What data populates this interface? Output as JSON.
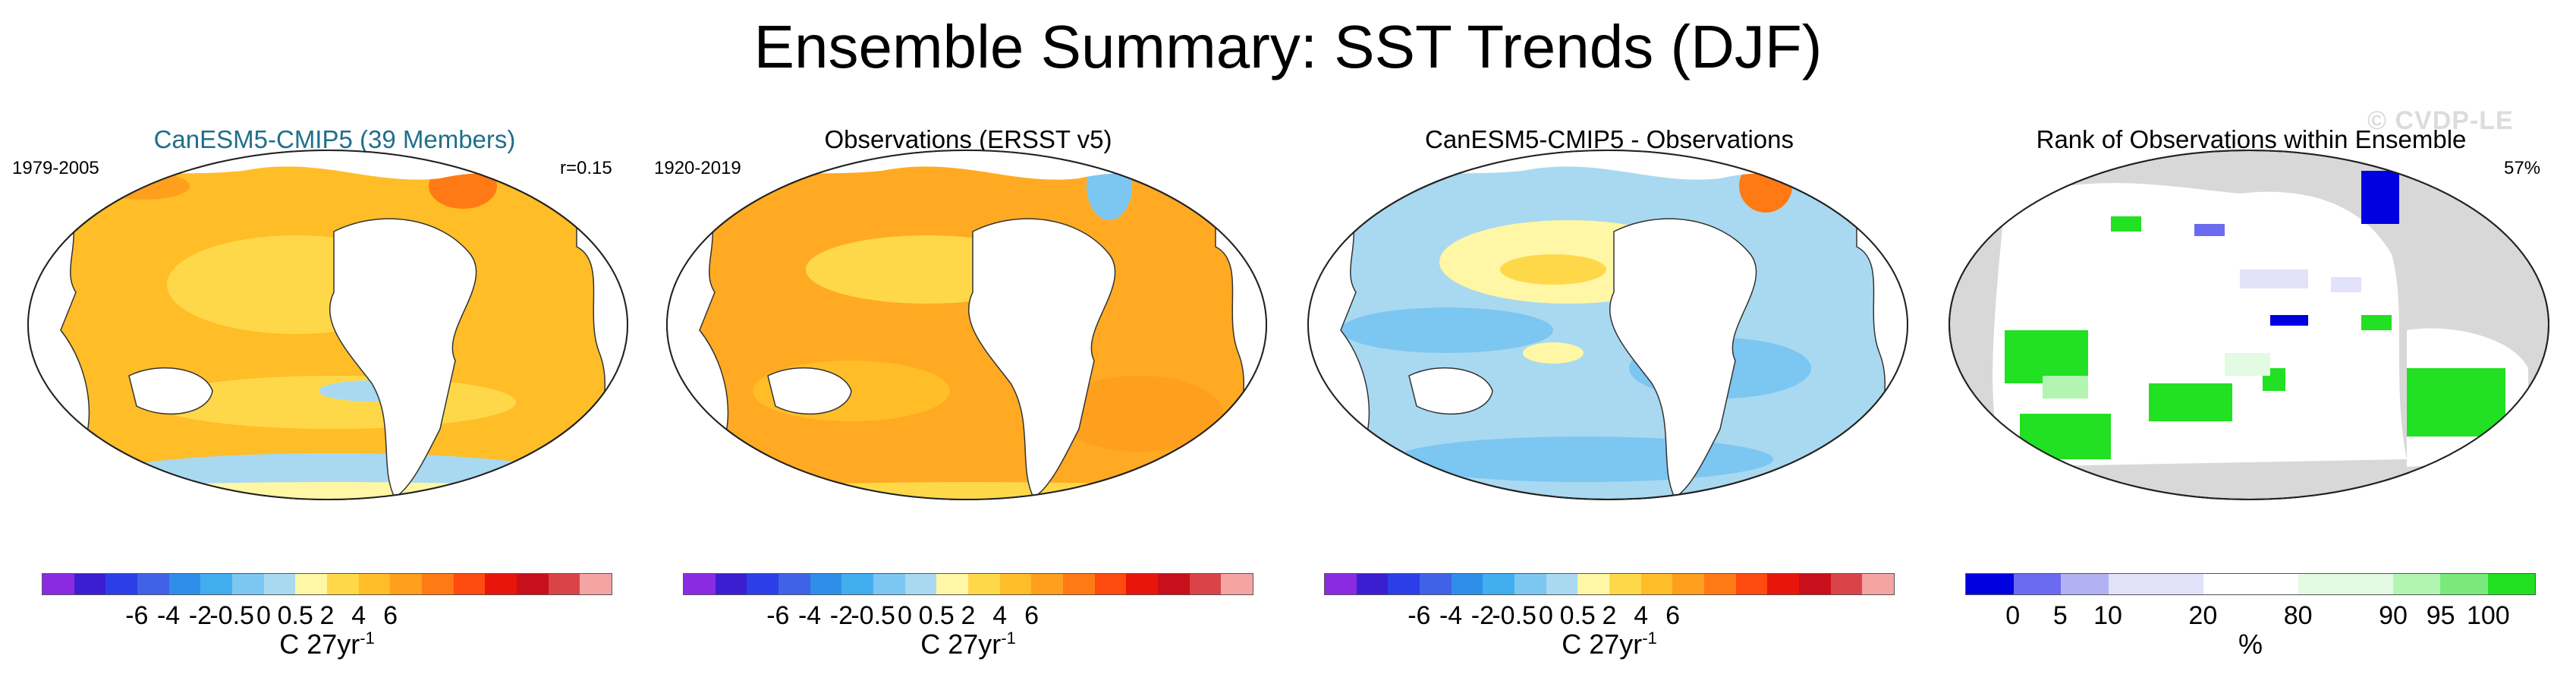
{
  "title": "Ensemble Summary: SST Trends (DJF)",
  "watermark": "© CVDP-LE",
  "panels": [
    {
      "title": "CanESM5-CMIP5 (39 Members)",
      "title_color": "#1f6f8b",
      "left_label": "1979-2005",
      "right_label": "r=0.15"
    },
    {
      "title": "Observations (ERSST v5)",
      "title_color": "#000000",
      "left_label": "1920-2019",
      "right_label": ""
    },
    {
      "title": "CanESM5-CMIP5 - Observations",
      "title_color": "#000000",
      "left_label": "",
      "right_label": ""
    },
    {
      "title": "Rank of Observations within Ensemble",
      "title_color": "#000000",
      "left_label": "",
      "right_label": "57%"
    }
  ],
  "trend_colorbar": {
    "colors": [
      "#8a2be2",
      "#3a1ed0",
      "#2b3ee8",
      "#3f62e6",
      "#2f8fe8",
      "#41aef0",
      "#7cc6f2",
      "#a9d9f0",
      "#fff7a5",
      "#ffd84a",
      "#ffbd28",
      "#ff9f1e",
      "#ff7a14",
      "#ff4a10",
      "#e8150a",
      "#c8101c",
      "#d94448",
      "#f5a4a4"
    ],
    "ticks": [
      "-6",
      "-4",
      "-2",
      "-0.5",
      "0",
      "0.5",
      "2",
      "4",
      "6"
    ],
    "units": "C 27yr",
    "units_exp": "-1"
  },
  "rank_colorbar": {
    "colors": [
      "#0000e0",
      "#6b6bf0",
      "#b2b2f2",
      "#e2e2fa",
      "#e2e2fa",
      "#ffffff",
      "#ffffff",
      "#e2fbe2",
      "#e2fbe2",
      "#b2f5b2",
      "#7ae87a",
      "#22e022"
    ],
    "ticks": [
      "0",
      "5",
      "10",
      "20",
      "80",
      "90",
      "95",
      "100"
    ],
    "units": "%"
  },
  "map_colors": {
    "ocean_model": "#ffbd28",
    "ocean_obs": "#ffaa22",
    "ocean_diff": "#a9d9f0",
    "ocean_rank": "#ffffff",
    "land": "#ffffff",
    "land_rank": "#d8d8d8"
  }
}
